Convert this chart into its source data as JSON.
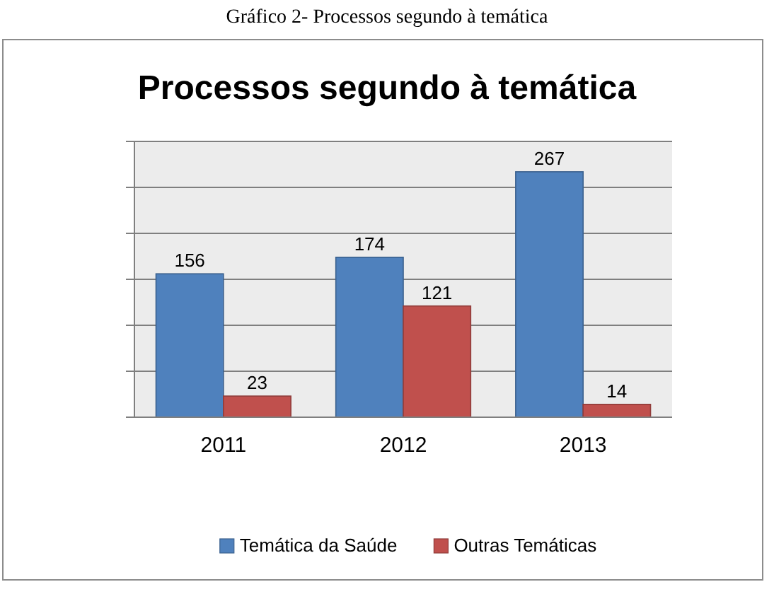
{
  "chart_data": {
    "type": "bar",
    "title": "Processos segundo à temática",
    "annotations": [
      "Gráfico 2- Processos segundo à temática"
    ],
    "categories": [
      "2011",
      "2012",
      "2013"
    ],
    "series": [
      {
        "name": "Temática da Saúde",
        "color": "#4f81bd",
        "values": [
          156,
          174,
          267
        ]
      },
      {
        "name": "Outras Temáticas",
        "color": "#c0504d",
        "values": [
          23,
          121,
          14
        ]
      }
    ],
    "ylim": [
      0,
      300
    ],
    "yticks": [
      {
        "value": 0,
        "label": null
      },
      {
        "value": 50,
        "label": null
      },
      {
        "value": 100,
        "label": null
      },
      {
        "value": 150,
        "label": null
      },
      {
        "value": 200,
        "label": null
      },
      {
        "value": 250,
        "label": null
      },
      {
        "value": 300,
        "label": null
      }
    ],
    "grid": true,
    "legend": "bottom",
    "data_labels": true,
    "tick_labels": "x"
  }
}
